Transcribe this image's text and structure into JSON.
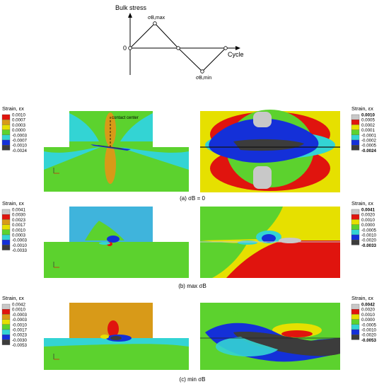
{
  "top_chart": {
    "ylabel": "Bulk stress",
    "xlabel": "Cycle",
    "origin_label": "0",
    "max_label": "σB,max",
    "min_label": "σB,min"
  },
  "annotations": {
    "contact_center": "contact center"
  },
  "rows": [
    {
      "caption": "(a) σB = 0",
      "left_legend": {
        "title": "Strain, εx",
        "ticks": [
          "0.0010",
          "0.0007",
          "0.0003",
          "0.0000",
          "-0.0003",
          "-0.0007",
          "-0.0010",
          "-0.0024"
        ]
      },
      "right_legend": {
        "title": "Strain, εx",
        "ticks": [
          "0.0010",
          "0.0005",
          "0.0002",
          "0.0001",
          "-0.0001",
          "-0.0002",
          "-0.0005",
          "-0.0024"
        ]
      }
    },
    {
      "caption": "(b) max σB",
      "left_legend": {
        "title": "Strain, εx",
        "ticks": [
          "0.0041",
          "0.0030",
          "0.0023",
          "0.0017",
          "0.0010",
          "0.0003",
          "-0.0003",
          "-0.0010",
          "-0.0033"
        ]
      },
      "right_legend": {
        "title": "Strain, εx",
        "ticks": [
          "0.0041",
          "0.0020",
          "0.0010",
          "0.0000",
          "-0.0005",
          "-0.0010",
          "-0.0020",
          "-0.0033"
        ]
      }
    },
    {
      "caption": "(c) min σB",
      "left_legend": {
        "title": "Strain, εx",
        "ticks": [
          "0.0042",
          "0.0010",
          "-0.0003",
          "-0.0003",
          "-0.0010",
          "-0.0017",
          "-0.0023",
          "-0.0030",
          "-0.0053"
        ]
      },
      "right_legend": {
        "title": "Strain, εx",
        "ticks": [
          "0.0042",
          "0.0020",
          "0.0010",
          "0.0000",
          "-0.0005",
          "-0.0010",
          "-0.0020",
          "-0.0053"
        ]
      }
    }
  ],
  "colors": {
    "gray": "#c8c8c8",
    "red": "#e0140e",
    "orange": "#d89a18",
    "yellow": "#e6e000",
    "green": "#5cd22e",
    "cyan": "#33d4d4",
    "skyblue": "#3fb4dc",
    "blue": "#1430d8",
    "dark": "#3c3c3c"
  }
}
